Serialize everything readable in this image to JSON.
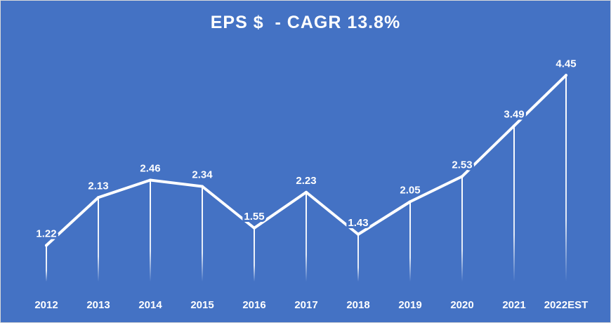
{
  "colors": {
    "background": "#4472C4",
    "line": "#ffffff",
    "text": "#ffffff"
  },
  "chart_data": {
    "type": "line",
    "title": "EPS $  - CAGR 13.8%",
    "xlabel": "",
    "ylabel": "",
    "categories": [
      "2012",
      "2013",
      "2014",
      "2015",
      "2016",
      "2017",
      "2018",
      "2019",
      "2020",
      "2021",
      "2022EST"
    ],
    "series": [
      {
        "values": [
          1.22,
          2.13,
          2.46,
          2.34,
          1.55,
          2.23,
          1.43,
          2.05,
          2.53,
          3.49,
          4.45
        ],
        "labels": [
          "1.22",
          "2.13",
          "2.46",
          "2.34",
          "1.55",
          "2.23",
          "1.43",
          "2.05",
          "2.53",
          "3.49",
          "4.45"
        ]
      }
    ],
    "drop_lines": true,
    "y_axis_visible": false,
    "grid": false,
    "legend": "none"
  }
}
